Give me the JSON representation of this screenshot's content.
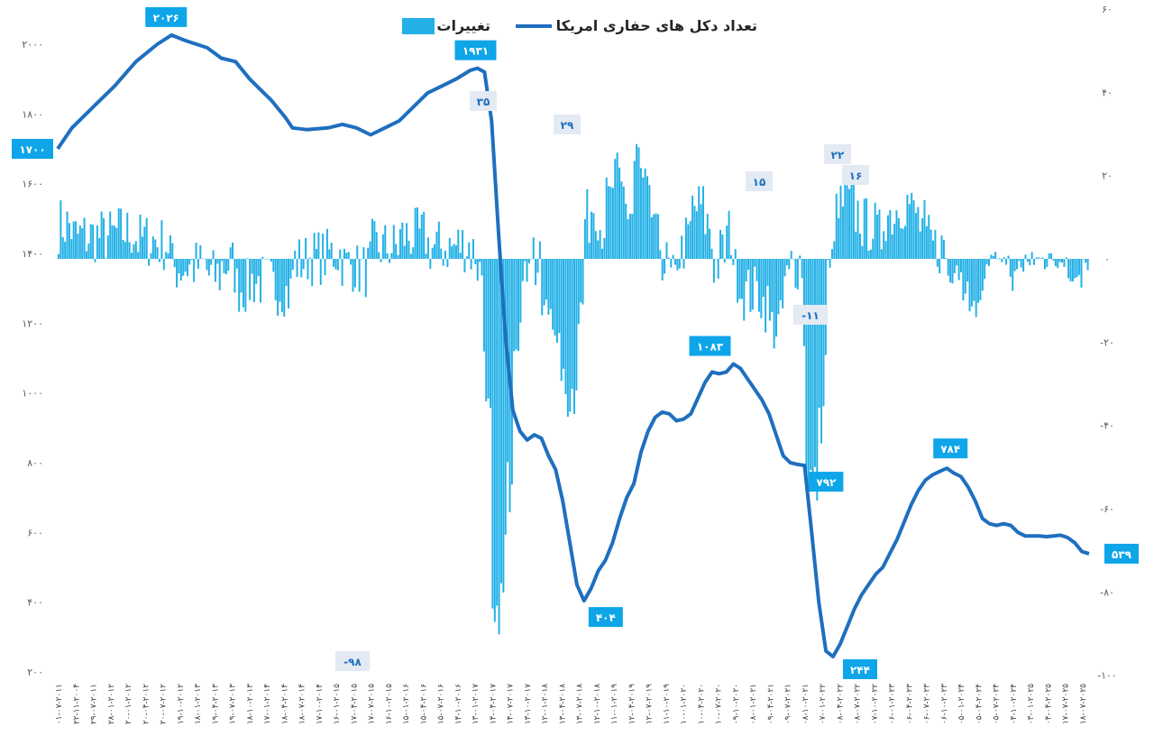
{
  "chart_data": {
    "type": "bar+line",
    "title": "",
    "legend": {
      "position": "top",
      "items": [
        {
          "name": "تعداد دکل های حفاری امریکا",
          "kind": "line",
          "color": "#1f6fbf"
        },
        {
          "name": "تغییرات",
          "kind": "bar",
          "color": "#22b0e6"
        }
      ]
    },
    "left_axis": {
      "ticks": [
        "۲۰۰",
        "۴۰۰",
        "۶۰۰",
        "۸۰۰",
        "۱۰۰۰",
        "۱۲۰۰",
        "۱۴۰۰",
        "۱۶۰۰",
        "۱۸۰۰",
        "۲۰۰۰"
      ],
      "range": [
        200,
        2200
      ]
    },
    "right_axis": {
      "ticks": [
        "-۱۰۰",
        "-۸۰",
        "-۶۰",
        "-۴۰",
        "-۲۰",
        "۰",
        "۲۰",
        "۴۰",
        "۶۰"
      ],
      "range": [
        -100,
        60
      ]
    },
    "x_labels": [
      "۰۱-۰۷-۲۰۱۱",
      "۲۲-۱۱-۲۰۰۴",
      "۲۹-۰۷-۲۰۱۱",
      "۲۸-۰۱-۲۰۱۲",
      "۲۰-۰۱-۲۰۱۲",
      "۲۰-۰۴-۲۰۱۲",
      "۲۰-۰۷-۲۰۱۲",
      "۱۹-۱۰-۲۰۱۲",
      "۱۸-۰۱-۲۰۱۳",
      "۱۹-۰۴-۲۰۱۳",
      "۱۹-۰۷-۲۰۱۳",
      "۱۸-۱۰-۲۰۱۳",
      "۱۷-۰۱-۲۰۱۴",
      "۱۸-۰۴-۲۰۱۴",
      "۱۸-۰۷-۲۰۱۴",
      "۱۷-۱۰-۲۰۱۴",
      "۱۶-۰۱-۲۰۱۵",
      "۱۷-۰۴-۲۰۱۵",
      "۱۷-۰۷-۲۰۱۵",
      "۱۶-۱۰-۲۰۱۵",
      "۱۵-۰۱-۲۰۱۶",
      "۱۵-۰۴-۲۰۱۶",
      "۱۵-۰۷-۲۰۱۶",
      "۱۴-۱۰-۲۰۱۶",
      "۱۳-۰۱-۲۰۱۷",
      "۱۴-۰۴-۲۰۱۷",
      "۱۴-۰۷-۲۰۱۷",
      "۱۳-۱۰-۲۰۱۷",
      "۱۲-۰۱-۲۰۱۸",
      "۱۳-۰۴-۲۰۱۸",
      "۱۳-۰۷-۲۰۱۸",
      "۱۲-۱۰-۲۰۱۸",
      "۱۱-۰۱-۲۰۱۹",
      "۱۲-۰۴-۲۰۱۹",
      "۱۲-۰۷-۲۰۱۹",
      "۱۱-۱۰-۲۰۱۹",
      "۱۰-۰۱-۲۰۲۰",
      "۱۰-۰۴-۲۰۲۰",
      "۱۰-۰۷-۲۰۲۰",
      "۰۹-۱۰-۲۰۲۰",
      "۰۸-۰۱-۲۰۲۱",
      "۰۹-۰۴-۲۰۲۱",
      "۰۹-۰۷-۲۰۲۱",
      "۰۸-۱۰-۲۰۲۱",
      "۰۷-۰۱-۲۰۲۲",
      "۰۸-۰۴-۲۰۲۲",
      "۰۸-۰۷-۲۰۲۲",
      "۰۷-۱۰-۲۰۲۲",
      "۰۶-۰۱-۲۰۲۳",
      "۰۶-۰۴-۲۰۲۳",
      "۰۶-۰۷-۲۰۲۳",
      "۰۶-۱۰-۲۰۲۳",
      "۰۵-۰۱-۲۰۲۴",
      "۰۵-۰۴-۲۰۲۴",
      "۰۵-۰۷-۲۰۲۴",
      "۰۴-۱۰-۲۰۲۴",
      "۰۳-۰۱-۲۰۲۵",
      "۰۴-۰۴-۲۰۲۵",
      "۱۷-۰۷-۲۰۲۵",
      "۱۸-۰۷-۲۰۲۵"
    ],
    "rig_count_series": {
      "name": "تعداد دکل های حفاری امریکا",
      "points": [
        [
          0,
          1700
        ],
        [
          2,
          1760
        ],
        [
          5,
          1820
        ],
        [
          8,
          1880
        ],
        [
          11,
          1950
        ],
        [
          14,
          2000
        ],
        [
          16,
          2026
        ],
        [
          18,
          2010
        ],
        [
          21,
          1990
        ],
        [
          23,
          1960
        ],
        [
          25,
          1950
        ],
        [
          27,
          1900
        ],
        [
          30,
          1840
        ],
        [
          32,
          1790
        ],
        [
          33,
          1760
        ],
        [
          35,
          1755
        ],
        [
          38,
          1760
        ],
        [
          40,
          1770
        ],
        [
          42,
          1760
        ],
        [
          44,
          1740
        ],
        [
          46,
          1760
        ],
        [
          48,
          1780
        ],
        [
          50,
          1820
        ],
        [
          52,
          1860
        ],
        [
          54,
          1880
        ],
        [
          56,
          1900
        ],
        [
          58,
          1925
        ],
        [
          59,
          1931
        ],
        [
          60,
          1920
        ],
        [
          61,
          1780
        ],
        [
          62,
          1450
        ],
        [
          63,
          1150
        ],
        [
          64,
          950
        ],
        [
          65,
          890
        ],
        [
          66,
          865
        ],
        [
          67,
          880
        ],
        [
          68,
          870
        ],
        [
          69,
          820
        ],
        [
          70,
          780
        ],
        [
          71,
          690
        ],
        [
          72,
          570
        ],
        [
          73,
          450
        ],
        [
          74,
          404
        ],
        [
          75,
          440
        ],
        [
          76,
          490
        ],
        [
          77,
          520
        ],
        [
          78,
          570
        ],
        [
          79,
          640
        ],
        [
          80,
          700
        ],
        [
          81,
          740
        ],
        [
          82,
          830
        ],
        [
          83,
          890
        ],
        [
          84,
          930
        ],
        [
          85,
          945
        ],
        [
          86,
          940
        ],
        [
          87,
          920
        ],
        [
          88,
          925
        ],
        [
          89,
          940
        ],
        [
          90,
          985
        ],
        [
          91,
          1030
        ],
        [
          92,
          1060
        ],
        [
          93,
          1055
        ],
        [
          94,
          1060
        ],
        [
          95,
          1083
        ],
        [
          96,
          1070
        ],
        [
          97,
          1040
        ],
        [
          98,
          1010
        ],
        [
          99,
          980
        ],
        [
          100,
          940
        ],
        [
          101,
          880
        ],
        [
          102,
          820
        ],
        [
          103,
          800
        ],
        [
          104,
          795
        ],
        [
          105,
          792
        ],
        [
          106,
          600
        ],
        [
          107,
          400
        ],
        [
          108,
          260
        ],
        [
          109,
          244
        ],
        [
          110,
          280
        ],
        [
          111,
          330
        ],
        [
          112,
          380
        ],
        [
          113,
          420
        ],
        [
          114,
          450
        ],
        [
          115,
          480
        ],
        [
          116,
          500
        ],
        [
          117,
          540
        ],
        [
          118,
          580
        ],
        [
          119,
          630
        ],
        [
          120,
          680
        ],
        [
          121,
          720
        ],
        [
          122,
          750
        ],
        [
          123,
          765
        ],
        [
          124,
          775
        ],
        [
          125,
          784
        ],
        [
          126,
          770
        ],
        [
          127,
          760
        ],
        [
          128,
          730
        ],
        [
          129,
          690
        ],
        [
          130,
          640
        ],
        [
          131,
          625
        ],
        [
          132,
          620
        ],
        [
          133,
          625
        ],
        [
          134,
          620
        ],
        [
          135,
          600
        ],
        [
          136,
          590
        ],
        [
          137,
          590
        ],
        [
          138,
          590
        ],
        [
          139,
          588
        ],
        [
          140,
          590
        ],
        [
          141,
          592
        ],
        [
          142,
          585
        ],
        [
          143,
          570
        ],
        [
          144,
          545
        ],
        [
          145,
          539
        ]
      ]
    },
    "changes_series": {
      "name": "تغییرات",
      "note": "weekly change in rig count, right axis"
    },
    "annotations": [
      {
        "series": "line",
        "label": "۱۷۰۰",
        "x": 0,
        "value": 1700
      },
      {
        "series": "line",
        "label": "۲۰۲۶",
        "x": 16,
        "value": 2026
      },
      {
        "series": "line",
        "label": "۱۹۳۱",
        "x": 59,
        "value": 1931
      },
      {
        "series": "line",
        "label": "۴۰۴",
        "x": 74,
        "value": 404
      },
      {
        "series": "line",
        "label": "۱۰۸۳",
        "x": 95,
        "value": 1083
      },
      {
        "series": "line",
        "label": "۷۹۲",
        "x": 105,
        "value": 792
      },
      {
        "series": "line",
        "label": "۲۴۴",
        "x": 109,
        "value": 244
      },
      {
        "series": "line",
        "label": "۷۸۴",
        "x": 125,
        "value": 784
      },
      {
        "series": "line",
        "label": "۵۳۹",
        "x": 145,
        "value": 539
      },
      {
        "series": "bar",
        "label": "۳۵",
        "value": 35
      },
      {
        "series": "bar",
        "label": "۲۹",
        "value": 29
      },
      {
        "series": "bar",
        "label": "۱۵",
        "value": 15
      },
      {
        "series": "bar",
        "label": "۲۲",
        "value": 22
      },
      {
        "series": "bar",
        "label": "۱۶",
        "value": 16
      },
      {
        "series": "bar",
        "label": "-۱۱",
        "value": -11
      },
      {
        "series": "bar",
        "label": "-۹۸",
        "value": -98
      }
    ]
  }
}
